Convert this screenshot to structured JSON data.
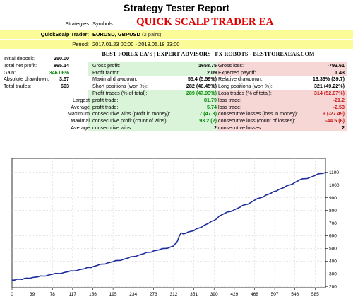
{
  "report": {
    "title": "Strategy Tester Report",
    "ea_name": "QUICK SCALP TRADER EA",
    "site_banner": "BEST FOREX EA'S | EXPERT ADVISORS | FX ROBOTS - BESTFOREXEAS.COM"
  },
  "header": {
    "strategies_label": "Strategies",
    "symbols_label": "Symbols",
    "trader_label": "QuickScalp Trader:",
    "trader_symbols": "EURUSD, GBPUSD",
    "trader_pairs": "(2 pairs)",
    "period_label": "Period:",
    "period_value": "2017.01.23 00:00 - 2018.05.18 23:00"
  },
  "left_stats": [
    {
      "label": "Initial deposit:",
      "value": "250.00"
    },
    {
      "label": "Total net profit:",
      "value": "865.14"
    },
    {
      "label": "Gain:",
      "value": "346.06%"
    },
    {
      "label": "Absolute drawdown:",
      "value": "3.57"
    },
    {
      "label": "Total trades:",
      "value": "603"
    }
  ],
  "mid_stats": [
    {
      "label": "Gross profit:",
      "value": "1658.75"
    },
    {
      "label": "Profit factor:",
      "value": "2.09"
    },
    {
      "label": "Maximal drawdown:",
      "value": "55.4 (5.59%)"
    },
    {
      "label": "Short positions (won %):",
      "value": "282 (46.45%)"
    },
    {
      "label": "Profit trades (% of total):",
      "value": "289 (47.93%)"
    }
  ],
  "right_stats": [
    {
      "label": "Gross loss:",
      "value": "-793.61"
    },
    {
      "label": "Expected payoff:",
      "value": "1.43"
    },
    {
      "label": "Relative drawdown:",
      "value": "13.33% (39.7)"
    },
    {
      "label": "Long positions (won %):",
      "value": "321 (49.22%)"
    },
    {
      "label": "Loss trades (% of total):",
      "value": "314 (52.07%)"
    }
  ],
  "lower_rows": [
    {
      "prefix": "Largest",
      "p_label": "profit trade:",
      "p_value": "81.79",
      "l_label": "loss trade:",
      "l_value": "-21.2"
    },
    {
      "prefix": "Average",
      "p_label": "profit trade:",
      "p_value": "5.74",
      "l_label": "loss trade:",
      "l_value": "-2.53"
    },
    {
      "prefix": "Maximum",
      "p_label": "consecutive wins (profit in money):",
      "p_value": "7 (47.3)",
      "l_label": "consecutive losses (loss in money):",
      "l_value": "9 (-27.49)"
    },
    {
      "prefix": "Maximal",
      "p_label": "consecutive profit (count of wins):",
      "p_value": "93.2 (2)",
      "l_label": "consecutive loss (count of losses):",
      "l_value": "-44.5 (6)"
    },
    {
      "prefix": "Average",
      "p_label": "consecutive wins:",
      "p_value": "2",
      "l_label": "consecutive losses:",
      "l_value": "2"
    }
  ],
  "chart_data": {
    "type": "line",
    "title": "",
    "xlabel": "",
    "ylabel": "",
    "x_ticks": [
      "0",
      "39",
      "78",
      "117",
      "156",
      "195",
      "234",
      "273",
      "312",
      "351",
      "390",
      "429",
      "468",
      "507",
      "546",
      "585"
    ],
    "y_ticks": [
      "200",
      "300",
      "400",
      "500",
      "600",
      "700",
      "800",
      "900",
      "1000",
      "1100"
    ],
    "xlim": [
      0,
      605
    ],
    "ylim": [
      190,
      1210
    ],
    "grid": true,
    "line_color": "#1a2a9c",
    "series": [
      {
        "name": "",
        "x": [
          0,
          10,
          20,
          30,
          39,
          50,
          60,
          70,
          78,
          90,
          100,
          110,
          117,
          130,
          140,
          150,
          156,
          165,
          175,
          185,
          195,
          205,
          215,
          225,
          234,
          245,
          255,
          265,
          273,
          285,
          295,
          305,
          312,
          318,
          322,
          326,
          330,
          340,
          351,
          360,
          370,
          380,
          390,
          400,
          410,
          420,
          429,
          440,
          450,
          460,
          468,
          480,
          490,
          500,
          507,
          515,
          525,
          535,
          546,
          555,
          565,
          575,
          585,
          595,
          605
        ],
        "y": [
          250,
          258,
          256,
          266,
          270,
          276,
          282,
          290,
          296,
          302,
          310,
          318,
          322,
          332,
          340,
          350,
          356,
          366,
          376,
          386,
          395,
          405,
          414,
          425,
          436,
          448,
          460,
          470,
          480,
          490,
          500,
          510,
          520,
          545,
          590,
          620,
          615,
          630,
          640,
          660,
          680,
          700,
          720,
          755,
          775,
          790,
          805,
          825,
          845,
          860,
          880,
          900,
          920,
          935,
          950,
          965,
          980,
          1000,
          1020,
          1040,
          1050,
          1060,
          1075,
          1090,
          1100
        ]
      }
    ]
  }
}
